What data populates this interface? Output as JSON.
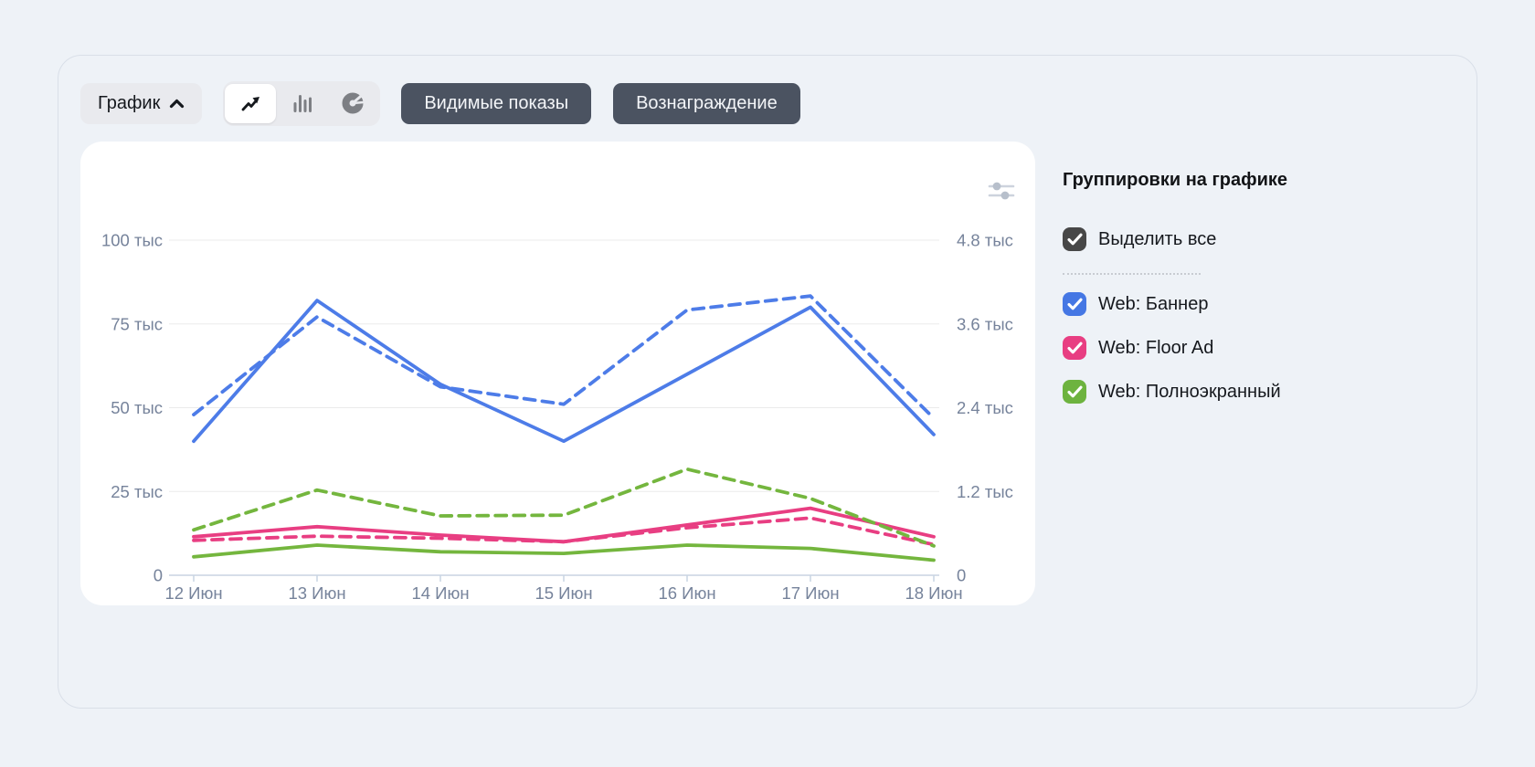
{
  "page": {
    "background": "#eef2f7"
  },
  "toolbar": {
    "chart_dropdown": {
      "label": "График",
      "state": "expanded",
      "icon": "chevron-up-icon"
    },
    "chart_type_switcher": {
      "options": [
        {
          "icon": "line-chart-icon",
          "selected": true
        },
        {
          "icon": "bar-chart-icon",
          "selected": false
        },
        {
          "icon": "pie-chart-icon",
          "selected": false
        }
      ]
    },
    "metric_buttons": [
      {
        "label": "Видимые показы",
        "active": true
      },
      {
        "label": "Вознаграждение",
        "active": true
      }
    ],
    "colors": {
      "dark_button_bg": "#4b5361",
      "light_button_bg": "#e9eaee"
    }
  },
  "card": {
    "settings_icon": "tune-sliders-icon"
  },
  "legend_panel": {
    "title": "Группировки на графике",
    "select_all": {
      "label": "Выделить все",
      "checked": true,
      "color": "#474747"
    },
    "items": [
      {
        "label": "Web: Баннер",
        "checked": true,
        "color": "#4577e4"
      },
      {
        "label": "Web: Floor Ad",
        "checked": true,
        "color": "#e83e82"
      },
      {
        "label": "Web: Полноэкранный",
        "checked": true,
        "color": "#6db33f"
      }
    ]
  },
  "chart_data": {
    "type": "line",
    "title": "",
    "grid": true,
    "legend_position": "right",
    "categories": [
      "12 Июн",
      "13 Июн",
      "14 Июн",
      "15 Июн",
      "16 Июн",
      "17 Июн",
      "18 Июн"
    ],
    "left_axis": {
      "metric": "Видимые показы",
      "max": 100,
      "ticks": [
        0,
        25,
        50,
        75,
        100
      ],
      "tick_labels": [
        "0",
        "25 тыс",
        "50 тыс",
        "75 тыс",
        "100 тыс"
      ]
    },
    "right_axis": {
      "metric": "Вознаграждение",
      "max": 4.8,
      "ticks": [
        0,
        1.2,
        2.4,
        3.6,
        4.8
      ],
      "tick_labels": [
        "0",
        "1.2 тыс",
        "2.4 тыс",
        "3.6 тыс",
        "4.8 тыс"
      ]
    },
    "series": [
      {
        "name": "Web: Баннер — Видимые показы",
        "axis": "left",
        "style": "solid",
        "color": "#4d7ce8",
        "values": [
          40,
          82,
          57,
          40,
          60,
          80,
          42
        ]
      },
      {
        "name": "Web: Floor Ad — Видимые показы",
        "axis": "left",
        "style": "solid",
        "color": "#e83e82",
        "values": [
          11.5,
          14.5,
          12,
          10,
          15,
          20,
          11.5
        ]
      },
      {
        "name": "Web: Полноэкранный — Видимые показы",
        "axis": "left",
        "style": "solid",
        "color": "#74b63e",
        "values": [
          5.5,
          9,
          7,
          6.5,
          9,
          8,
          4.5
        ]
      },
      {
        "name": "Web: Баннер — Вознаграждение",
        "axis": "right",
        "style": "dashed",
        "color": "#4d7ce8",
        "values": [
          2.3,
          3.7,
          2.7,
          2.45,
          3.8,
          4.0,
          2.25
        ]
      },
      {
        "name": "Web: Floor Ad — Вознаграждение",
        "axis": "right",
        "style": "dashed",
        "color": "#e83e82",
        "values": [
          0.5,
          0.56,
          0.53,
          0.48,
          0.68,
          0.82,
          0.44
        ]
      },
      {
        "name": "Web: Полноэкранный — Вознаграждение",
        "axis": "right",
        "style": "dashed",
        "color": "#74b63e",
        "values": [
          0.65,
          1.22,
          0.85,
          0.86,
          1.52,
          1.1,
          0.42
        ]
      }
    ]
  }
}
